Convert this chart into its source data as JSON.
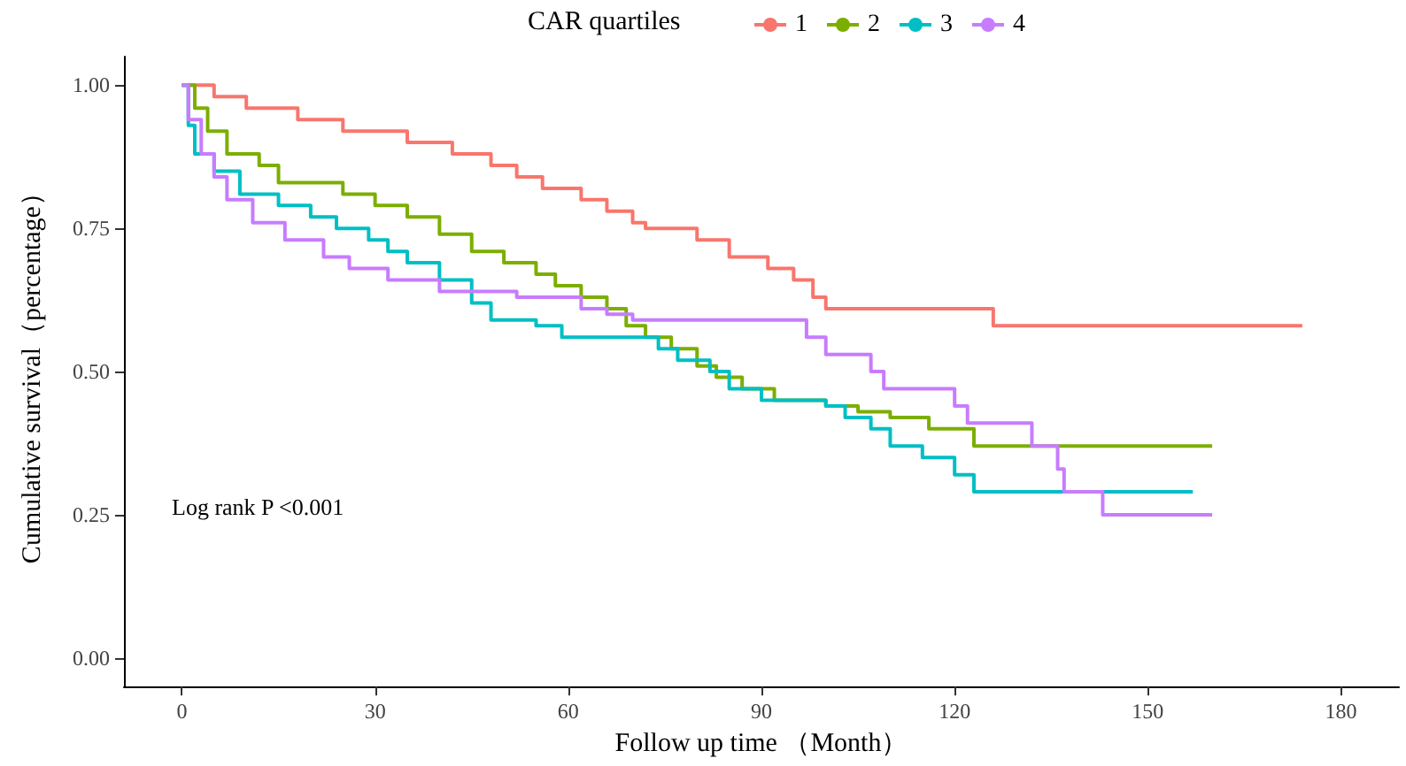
{
  "chart_data": {
    "type": "step",
    "xlabel": "Follow up time （Month）",
    "ylabel": "Cumulative survival（percentage）",
    "legend_title": "CAR quartiles",
    "legend": "top",
    "grid": false,
    "line_style": "solid",
    "marker": "none",
    "xlim": [
      -9,
      189
    ],
    "xticks": [
      0,
      30,
      60,
      90,
      120,
      150,
      180
    ],
    "ylim": [
      -0.05,
      1.05
    ],
    "yticks": [
      {
        "value": 0,
        "label": "0.00"
      },
      {
        "value": 0.25,
        "label": "0.25"
      },
      {
        "value": 0.5,
        "label": "0.50"
      },
      {
        "value": 0.75,
        "label": "0.75"
      },
      {
        "value": 1,
        "label": "1.00"
      }
    ],
    "annotations": [
      "Log rank P <0.001"
    ],
    "series": [
      {
        "name": "1",
        "color": "#f8766d",
        "x": [
          0,
          5,
          10,
          18,
          25,
          35,
          42,
          48,
          52,
          56,
          62,
          66,
          70,
          72,
          80,
          85,
          91,
          95,
          98,
          100,
          126,
          174
        ],
        "values": [
          1.0,
          0.98,
          0.96,
          0.94,
          0.92,
          0.9,
          0.88,
          0.86,
          0.84,
          0.82,
          0.8,
          0.78,
          0.76,
          0.75,
          0.73,
          0.7,
          0.68,
          0.66,
          0.63,
          0.61,
          0.58,
          0.58
        ]
      },
      {
        "name": "2",
        "color": "#7cae00",
        "x": [
          0,
          2,
          4,
          7,
          12,
          15,
          25,
          30,
          35,
          40,
          45,
          50,
          55,
          58,
          62,
          66,
          69,
          72,
          76,
          80,
          83,
          87,
          92,
          100,
          105,
          110,
          116,
          123,
          160
        ],
        "values": [
          1.0,
          0.96,
          0.92,
          0.88,
          0.86,
          0.83,
          0.81,
          0.79,
          0.77,
          0.74,
          0.71,
          0.69,
          0.67,
          0.65,
          0.63,
          0.61,
          0.58,
          0.56,
          0.54,
          0.51,
          0.49,
          0.47,
          0.45,
          0.44,
          0.43,
          0.42,
          0.4,
          0.37,
          0.37
        ]
      },
      {
        "name": "3",
        "color": "#00bfc4",
        "x": [
          0,
          1,
          2,
          5,
          9,
          15,
          20,
          24,
          29,
          32,
          35,
          40,
          45,
          48,
          55,
          59,
          74,
          77,
          82,
          85,
          90,
          100,
          103,
          107,
          110,
          115,
          120,
          123,
          157
        ],
        "values": [
          1.0,
          0.93,
          0.88,
          0.85,
          0.81,
          0.79,
          0.77,
          0.75,
          0.73,
          0.71,
          0.69,
          0.66,
          0.62,
          0.59,
          0.58,
          0.56,
          0.54,
          0.52,
          0.5,
          0.47,
          0.45,
          0.44,
          0.42,
          0.4,
          0.37,
          0.35,
          0.32,
          0.29,
          0.29
        ]
      },
      {
        "name": "4",
        "color": "#c77cff",
        "x": [
          0,
          1,
          3,
          5,
          7,
          11,
          16,
          22,
          26,
          32,
          40,
          52,
          62,
          66,
          70,
          97,
          100,
          107,
          109,
          120,
          122,
          132,
          136,
          137,
          143,
          160
        ],
        "values": [
          1.0,
          0.94,
          0.88,
          0.84,
          0.8,
          0.76,
          0.73,
          0.7,
          0.68,
          0.66,
          0.64,
          0.63,
          0.61,
          0.6,
          0.59,
          0.56,
          0.53,
          0.5,
          0.47,
          0.44,
          0.41,
          0.37,
          0.33,
          0.29,
          0.25,
          0.25
        ]
      }
    ]
  }
}
